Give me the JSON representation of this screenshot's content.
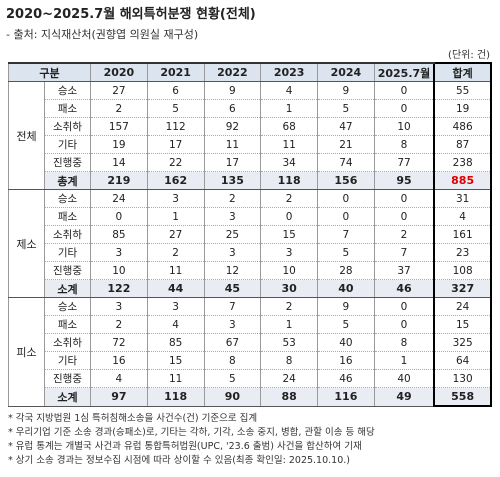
{
  "title": "2020~2025.7월 해외특허분쟁 현황(전체)",
  "source": "- 출처: 지식재산처(권향엽 의원실 재구성)",
  "unit": "(단위: 건)",
  "table": {
    "header": [
      "구분",
      "2020",
      "2021",
      "2022",
      "2023",
      "2024",
      "2025.7월",
      "합계"
    ],
    "groups": [
      {
        "label": "전체",
        "rows": [
          {
            "label": "승소",
            "values": [
              27,
              6,
              9,
              4,
              9,
              0,
              55
            ]
          },
          {
            "label": "패소",
            "values": [
              2,
              5,
              6,
              1,
              5,
              0,
              19
            ]
          },
          {
            "label": "소취하",
            "values": [
              157,
              112,
              92,
              68,
              47,
              10,
              486
            ]
          },
          {
            "label": "기타",
            "values": [
              19,
              17,
              11,
              11,
              21,
              8,
              87
            ]
          },
          {
            "label": "진행중",
            "values": [
              14,
              22,
              17,
              34,
              74,
              77,
              238
            ]
          }
        ],
        "total": {
          "label": "총계",
          "values": [
            219,
            162,
            135,
            118,
            156,
            95,
            885
          ]
        }
      },
      {
        "label": "제소",
        "rows": [
          {
            "label": "승소",
            "values": [
              24,
              3,
              2,
              2,
              0,
              0,
              31
            ]
          },
          {
            "label": "패소",
            "values": [
              0,
              1,
              3,
              0,
              0,
              0,
              4
            ]
          },
          {
            "label": "소취하",
            "values": [
              85,
              27,
              25,
              15,
              7,
              2,
              161
            ]
          },
          {
            "label": "기타",
            "values": [
              3,
              2,
              3,
              3,
              5,
              7,
              23
            ]
          },
          {
            "label": "진행중",
            "values": [
              10,
              11,
              12,
              10,
              28,
              37,
              108
            ]
          }
        ],
        "total": {
          "label": "소계",
          "values": [
            122,
            44,
            45,
            30,
            40,
            46,
            327
          ]
        }
      },
      {
        "label": "피소",
        "rows": [
          {
            "label": "승소",
            "values": [
              3,
              3,
              7,
              2,
              9,
              0,
              24
            ]
          },
          {
            "label": "패소",
            "values": [
              2,
              4,
              3,
              1,
              5,
              0,
              15
            ]
          },
          {
            "label": "소취하",
            "values": [
              72,
              85,
              67,
              53,
              40,
              8,
              325
            ]
          },
          {
            "label": "기타",
            "values": [
              16,
              15,
              8,
              8,
              16,
              1,
              64
            ]
          },
          {
            "label": "진행중",
            "values": [
              4,
              11,
              5,
              24,
              46,
              40,
              130
            ]
          }
        ],
        "total": {
          "label": "소계",
          "values": [
            97,
            118,
            90,
            88,
            116,
            49,
            558
          ]
        }
      }
    ]
  },
  "notes": [
    "* 각국 지방법원 1심 특허침해소송을 사건수(건) 기준으로 집계",
    "* 우리기업 기준 소송 경과(승패소)로, 기타는 각하, 기각, 소송 중지, 병합, 관할 이송 등 해당",
    "* 유럽 통계는 개별국 사건과 유럽 통합특허법원(UPC, '23.6 출범) 사건을 합산하여 기재",
    "* 상기 소송 경과는 정보수집 시점에 따라 상이할 수 있음(최종 확인일: 2025.10.10.)"
  ]
}
